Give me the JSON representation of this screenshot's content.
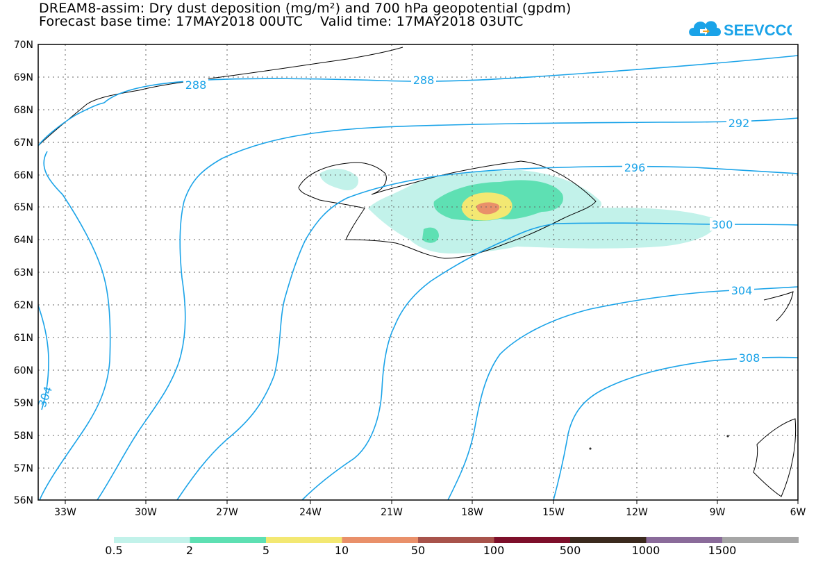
{
  "title": {
    "line1": "DREAM8-assim: Dry dust deposition (mg/m²) and 700 hPa geopotential (gpdm)",
    "line2": "Forecast base time: 17MAY2018 00UTC    Valid time: 17MAY2018 03UTC"
  },
  "logo": {
    "text": "SEEVCCC",
    "icon": "cloud-icon",
    "color": "#1aa3e8"
  },
  "map": {
    "lat_labels": [
      "70N",
      "69N",
      "68N",
      "67N",
      "66N",
      "65N",
      "64N",
      "63N",
      "62N",
      "61N",
      "60N",
      "59N",
      "58N",
      "57N",
      "56N"
    ],
    "lon_labels": [
      "33W",
      "30W",
      "27W",
      "24W",
      "21W",
      "18W",
      "15W",
      "12W",
      "9W",
      "6W"
    ],
    "contour_labels": [
      "288",
      "288",
      "292",
      "296",
      "300",
      "304",
      "308",
      "304"
    ],
    "contour_color": "#1aa3e8",
    "coast_color": "#000000"
  },
  "colorbar": {
    "labels": [
      "0.5",
      "2",
      "5",
      "10",
      "50",
      "100",
      "500",
      "1000",
      "1500"
    ],
    "colors": [
      "#c2f2ea",
      "#5ee0b3",
      "#f3e872",
      "#e9906a",
      "#a8534b",
      "#7d0f2a",
      "#3b2a1e",
      "#8a6b9a",
      "#a6a6a6"
    ]
  }
}
